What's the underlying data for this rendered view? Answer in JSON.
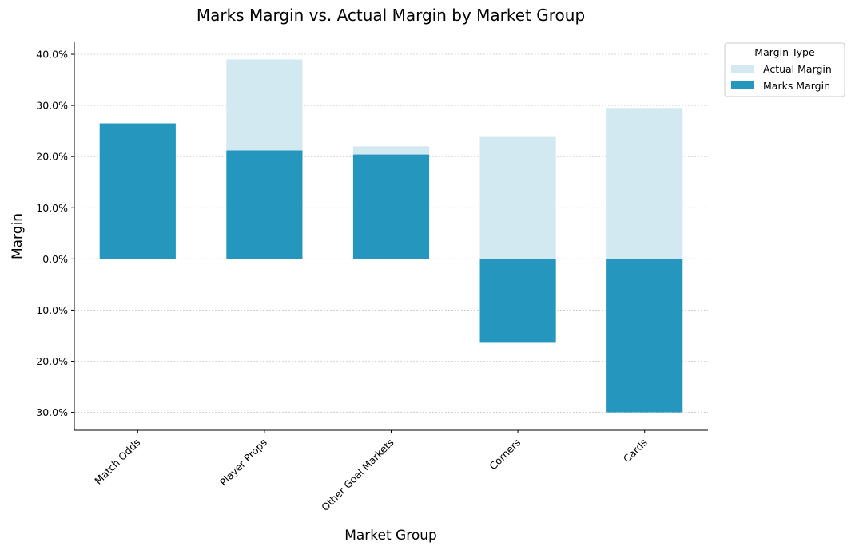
{
  "chart_data": {
    "type": "bar",
    "title": "Marks Margin vs. Actual Margin by Market Group",
    "xlabel": "Market Group",
    "ylabel": "Margin",
    "categories": [
      "Match Odds",
      "Player Props",
      "Other Goal Markets",
      "Corners",
      "Cards"
    ],
    "series": [
      {
        "name": "Actual Margin",
        "values": [
          26.5,
          39.0,
          22.0,
          24.0,
          29.5
        ],
        "color": "#d3e9f1"
      },
      {
        "name": "Marks Margin",
        "values": [
          26.5,
          21.2,
          20.4,
          -16.4,
          -30.0
        ],
        "color": "#2596be"
      }
    ],
    "ylim": [
      -33.5,
      42.5
    ],
    "yticks": [
      -30,
      -20,
      -10,
      0,
      10,
      20,
      30,
      40
    ],
    "ytick_labels": [
      "-30.0%",
      "-20.0%",
      "-10.0%",
      "0.0%",
      "10.0%",
      "20.0%",
      "30.0%",
      "40.0%"
    ],
    "grid": true,
    "legend": {
      "title": "Margin Type",
      "placement": "outside-top-right"
    }
  }
}
